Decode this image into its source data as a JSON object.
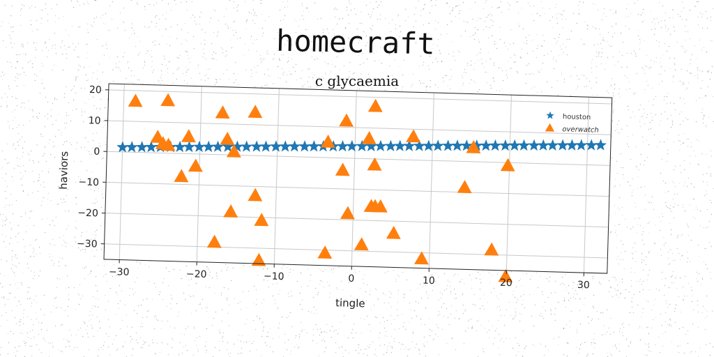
{
  "suptitle": "homecraft",
  "chart_data": {
    "type": "scatter",
    "title": "c glycaemia",
    "xlabel": "tingle",
    "ylabel": "haviors",
    "xlim": [
      -32,
      33
    ],
    "ylim": [
      -35,
      22
    ],
    "xticks": [
      -30,
      -20,
      -10,
      0,
      10,
      20,
      30
    ],
    "yticks": [
      20,
      10,
      0,
      -10,
      -20,
      -30
    ],
    "grid": true,
    "legend_position": "top-right",
    "series": [
      {
        "name": "houston",
        "marker": "star",
        "color": "#1f77b4",
        "x": [
          -30.0,
          -28.8,
          -27.5,
          -26.3,
          -25.1,
          -23.8,
          -22.6,
          -21.4,
          -20.1,
          -18.9,
          -17.7,
          -16.4,
          -15.2,
          -14.0,
          -12.7,
          -11.5,
          -10.2,
          -9.0,
          -7.8,
          -6.5,
          -5.3,
          -4.1,
          -2.8,
          -1.6,
          -0.4,
          0.9,
          2.1,
          3.3,
          4.6,
          5.8,
          7.0,
          8.3,
          9.5,
          10.7,
          12.0,
          13.2,
          14.4,
          15.7,
          16.9,
          18.1,
          19.4,
          20.6,
          21.8,
          23.1,
          24.3,
          25.5,
          26.8,
          28.0,
          29.2,
          30.5,
          31.7
        ],
        "y": [
          1.5,
          1.6,
          1.7,
          1.8,
          1.9,
          2.0,
          2.1,
          2.2,
          2.3,
          2.4,
          2.5,
          2.6,
          2.7,
          2.8,
          2.9,
          3.0,
          3.1,
          3.2,
          3.3,
          3.4,
          3.5,
          3.6,
          3.7,
          3.8,
          3.9,
          4.0,
          4.1,
          4.2,
          4.3,
          4.4,
          4.5,
          4.6,
          4.7,
          4.8,
          4.9,
          5.0,
          5.1,
          5.2,
          5.3,
          5.4,
          5.5,
          5.6,
          5.7,
          5.8,
          5.9,
          6.0,
          6.1,
          6.2,
          6.3,
          6.4,
          6.5
        ]
      },
      {
        "name": "overwatch",
        "marker": "triangle",
        "color": "#ff7f0e",
        "x": [
          -28.5,
          -24.3,
          -25.5,
          -24.8,
          -24.1,
          -21.5,
          -20.5,
          -22.3,
          -17.2,
          -16.5,
          -15.6,
          -15.8,
          -13.0,
          -12.7,
          -11.8,
          -17.8,
          -12.0,
          -3.5,
          -3.5,
          -1.2,
          -1.5,
          -0.7,
          1.8,
          2.5,
          2.6,
          2.8,
          2.3,
          3.5,
          1.2,
          5.3,
          7.5,
          9.0,
          14.3,
          15.3,
          18.0,
          19.8,
          19.9
        ],
        "y": [
          16.5,
          17.0,
          5.0,
          3.0,
          2.5,
          5.5,
          -4.0,
          -7.5,
          13.5,
          5.0,
          1.0,
          -18.5,
          14.0,
          -13.0,
          -21.0,
          -28.5,
          -34.0,
          5.0,
          -31.0,
          12.0,
          -4.0,
          -18.0,
          6.5,
          17.0,
          -2.0,
          -15.5,
          -15.5,
          -15.5,
          -28.0,
          -24.0,
          7.5,
          -32.0,
          -8.5,
          4.5,
          -28.5,
          -1.0,
          -37.0
        ]
      }
    ]
  }
}
